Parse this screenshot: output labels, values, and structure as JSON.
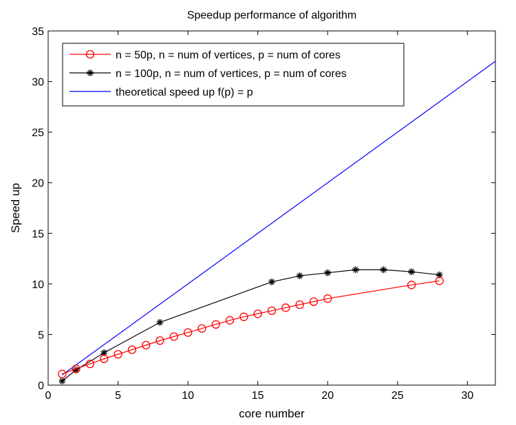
{
  "chart_data": {
    "type": "line",
    "title": "Speedup performance of algorithm",
    "xlabel": "core number",
    "ylabel": "Speed up",
    "xlim": [
      0,
      32
    ],
    "ylim": [
      0,
      35
    ],
    "xticks": [
      0,
      5,
      10,
      15,
      20,
      25,
      30
    ],
    "yticks": [
      0,
      5,
      10,
      15,
      20,
      25,
      30,
      35
    ],
    "grid": false,
    "legend_position": "top-left",
    "series": [
      {
        "name": "n = 50p, n = num of vertices, p = num of cores",
        "color": "#ff0000",
        "marker": "circle",
        "x": [
          1,
          2,
          3,
          4,
          5,
          6,
          7,
          8,
          9,
          10,
          11,
          12,
          13,
          14,
          15,
          16,
          17,
          18,
          19,
          20,
          26,
          28
        ],
        "y": [
          1.1,
          1.6,
          2.1,
          2.6,
          3.05,
          3.5,
          3.95,
          4.4,
          4.8,
          5.2,
          5.6,
          6.0,
          6.4,
          6.75,
          7.05,
          7.35,
          7.65,
          7.95,
          8.25,
          8.55,
          9.9,
          10.3
        ]
      },
      {
        "name": "n = 100p, n = num of vertices, p = num of cores",
        "color": "#000000",
        "marker": "star",
        "x": [
          1,
          2,
          4,
          8,
          16,
          18,
          20,
          22,
          24,
          26,
          28
        ],
        "y": [
          0.4,
          1.5,
          3.2,
          6.2,
          10.2,
          10.8,
          11.1,
          11.4,
          11.4,
          11.2,
          10.9
        ]
      },
      {
        "name": "theoretical speed up f(p) = p",
        "color": "#0000ff",
        "marker": "none",
        "x": [
          1,
          32
        ],
        "y": [
          1,
          32
        ]
      }
    ]
  }
}
